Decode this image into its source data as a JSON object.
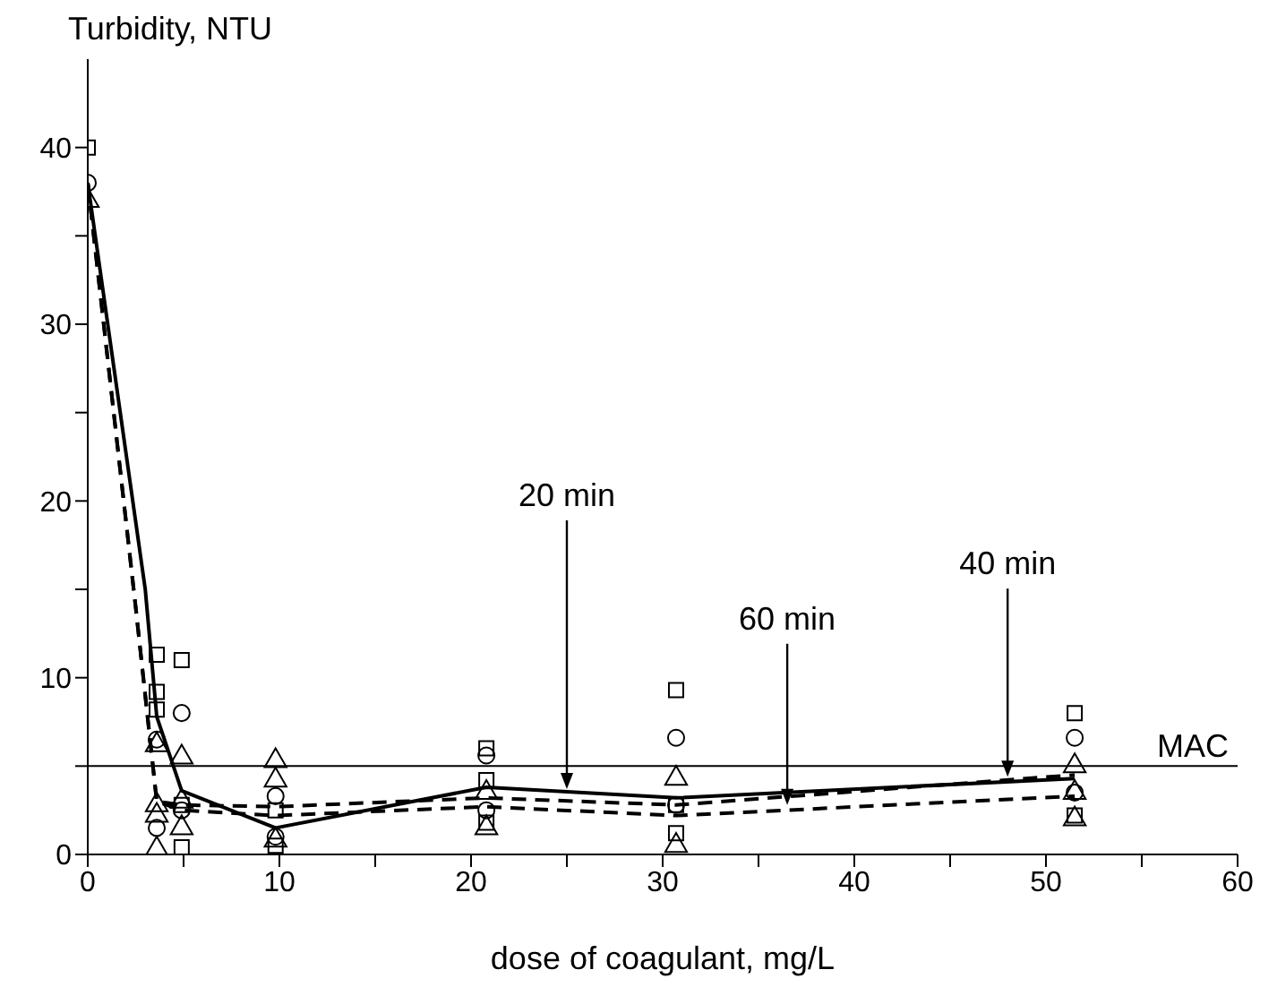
{
  "chart_data": {
    "type": "line",
    "ylabel": "Turbidity, NTU",
    "xlabel": "dose of coagulant, mg/L",
    "xlim": [
      0,
      60
    ],
    "xticks": [
      0,
      {
        "value": 5,
        "label": null
      },
      10,
      {
        "value": 15,
        "label": null
      },
      20,
      {
        "value": 25,
        "label": null
      },
      30,
      {
        "value": 35,
        "label": null
      },
      40,
      {
        "value": 45,
        "label": null
      },
      50,
      {
        "value": 55,
        "label": null
      },
      60
    ],
    "ylim": [
      0,
      45
    ],
    "yticks": [
      0,
      {
        "value": 5,
        "label": null
      },
      10,
      {
        "value": 15,
        "label": null
      },
      20,
      {
        "value": 25,
        "label": null
      },
      30,
      {
        "value": 35,
        "label": null
      },
      40
    ],
    "grid": false,
    "series": [
      {
        "color": "#000000",
        "line_style": "solid",
        "marker": "none",
        "x": [
          0,
          3,
          3.6,
          4.9,
          9.8,
          20.8,
          30.7,
          51.5
        ],
        "values": [
          38,
          15,
          7.8,
          3.6,
          1.5,
          3.8,
          3.2,
          4.3
        ]
      },
      {
        "color": "#000000",
        "line_style": "dashed",
        "marker": "none",
        "x": [
          0,
          2.5,
          3.6,
          4.9,
          9.8,
          20.8,
          30.7,
          51.5
        ],
        "values": [
          38,
          14,
          3,
          2.8,
          2.7,
          3.2,
          2.8,
          4.5
        ]
      },
      {
        "color": "#000000",
        "line_style": "dashed",
        "marker": "none",
        "x": [
          0,
          2.5,
          3.6,
          4.9,
          9.8,
          20.8,
          30.7,
          51.5
        ],
        "values": [
          38,
          14,
          3,
          2.5,
          2.2,
          2.7,
          2.2,
          3.3
        ]
      },
      {
        "type": "scatter",
        "color": "#000000",
        "marker": "square",
        "x": [
          0,
          3.6,
          3.6,
          3.6,
          4.9,
          4.9,
          4.9,
          9.8,
          9.8,
          20.8,
          20.8,
          20.8,
          30.7,
          30.7,
          30.7,
          51.5,
          51.5
        ],
        "values": [
          40,
          11.3,
          9.2,
          8.2,
          11,
          2.8,
          0.4,
          2.5,
          0.5,
          6,
          4.2,
          1.8,
          9.3,
          2.8,
          1.2,
          8,
          2.2
        ]
      },
      {
        "type": "scatter",
        "color": "#000000",
        "marker": "circle",
        "x": [
          0,
          3.6,
          3.6,
          4.9,
          4.9,
          9.8,
          9.8,
          20.8,
          20.8,
          30.7,
          30.7,
          51.5,
          51.5
        ],
        "values": [
          38,
          6.5,
          1.5,
          8,
          2.5,
          3.3,
          1,
          5.6,
          2.5,
          6.6,
          2.8,
          6.6,
          3.5
        ]
      },
      {
        "type": "scatter",
        "color": "#000000",
        "marker": "triangle",
        "x": [
          0,
          3.6,
          3.6,
          3.6,
          3.6,
          4.9,
          4.9,
          4.9,
          9.8,
          9.8,
          9.8,
          20.8,
          20.8,
          30.7,
          30.7,
          51.5,
          51.5,
          51.5
        ],
        "values": [
          37,
          6.2,
          2.8,
          2.2,
          0.3,
          5.5,
          3,
          1.5,
          5.3,
          4.2,
          0.8,
          3.5,
          1.5,
          4.3,
          0.5,
          5,
          3.5,
          2
        ]
      }
    ],
    "ref_lines": [
      {
        "axis": "y",
        "value": 5,
        "label": "MAC",
        "color": "#000000"
      }
    ],
    "annotations": [
      {
        "text": "20 min",
        "x": 25,
        "y": 3.7
      },
      {
        "text": "60 min",
        "x": 36.5,
        "y": 2.8
      },
      {
        "text": "40 min",
        "x": 48,
        "y": 4.4
      }
    ]
  }
}
